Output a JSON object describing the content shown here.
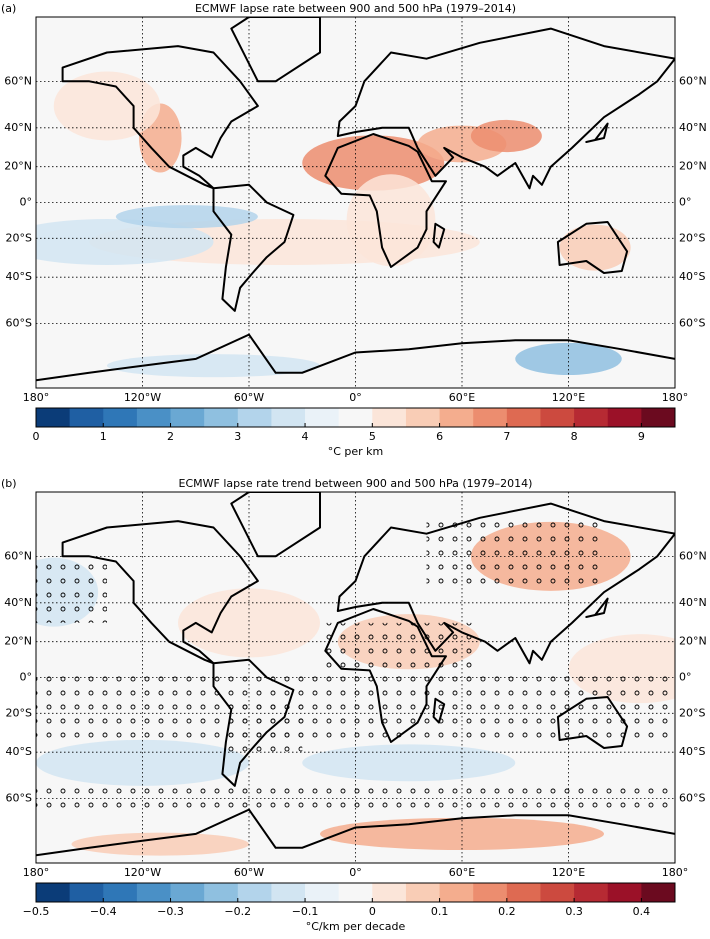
{
  "panels": [
    {
      "label": "(a)",
      "title": "ECMWF lapse rate between 900 and 500 hPa (1979–2014)",
      "lonlim": [
        -180,
        180
      ],
      "latlim": [
        -80,
        80
      ],
      "lon_ticks": [
        {
          "value": -180,
          "label": "180°"
        },
        {
          "value": -120,
          "label": "120°W"
        },
        {
          "value": -60,
          "label": "60°W"
        },
        {
          "value": 0,
          "label": "0°"
        },
        {
          "value": 60,
          "label": "60°E"
        },
        {
          "value": 120,
          "label": "120°E"
        },
        {
          "value": 180,
          "label": "180°"
        }
      ],
      "lat_ticks": [
        {
          "value": 60,
          "label": "60°N"
        },
        {
          "value": 40,
          "label": "40°N"
        },
        {
          "value": 20,
          "label": "20°N"
        },
        {
          "value": 0,
          "label": "0°"
        },
        {
          "value": -20,
          "label": "20°S"
        },
        {
          "value": -40,
          "label": "40°S"
        },
        {
          "value": -60,
          "label": "60°S"
        }
      ],
      "colorbar": {
        "lim": [
          0,
          9.5
        ],
        "ticks": [
          0,
          1,
          2,
          3,
          4,
          5,
          6,
          7,
          8,
          9
        ],
        "label": "°C per km",
        "colors": [
          "#0b3c78",
          "#1f5fa3",
          "#2f77b7",
          "#4a90c6",
          "#6aa8d3",
          "#8fc0e0",
          "#b3d4eb",
          "#d2e5f2",
          "#eaf2f8",
          "#f7f7f7",
          "#fbe5d9",
          "#f9cdb6",
          "#f4ad8e",
          "#ec8d6f",
          "#de6a52",
          "#cc4a3f",
          "#b62a33",
          "#9b1128",
          "#6b0a1f"
        ]
      }
    },
    {
      "label": "(b)",
      "title": "ECMWF lapse rate trend between 900 and 500 hPa (1979–2014)",
      "lonlim": [
        -180,
        180
      ],
      "latlim": [
        -80,
        80
      ],
      "lon_ticks": [
        {
          "value": -180,
          "label": "180°"
        },
        {
          "value": -120,
          "label": "120°W"
        },
        {
          "value": -60,
          "label": "60°W"
        },
        {
          "value": 0,
          "label": "0°"
        },
        {
          "value": 60,
          "label": "60°E"
        },
        {
          "value": 120,
          "label": "120°E"
        },
        {
          "value": 180,
          "label": "180°"
        }
      ],
      "lat_ticks": [
        {
          "value": 60,
          "label": "60°N"
        },
        {
          "value": 40,
          "label": "40°N"
        },
        {
          "value": 20,
          "label": "20°N"
        },
        {
          "value": 0,
          "label": "0°"
        },
        {
          "value": -20,
          "label": "20°S"
        },
        {
          "value": -40,
          "label": "40°S"
        },
        {
          "value": -60,
          "label": "60°S"
        }
      ],
      "colorbar": {
        "lim": [
          -0.5,
          0.45
        ],
        "ticks": [
          {
            "value": -0.5,
            "label": "−0.5"
          },
          {
            "value": -0.4,
            "label": "−0.4"
          },
          {
            "value": -0.3,
            "label": "−0.3"
          },
          {
            "value": -0.2,
            "label": "−0.2"
          },
          {
            "value": -0.1,
            "label": "−0.1"
          },
          0.0,
          0.1,
          0.2,
          0.3,
          0.4
        ],
        "label": "°C/km per decade",
        "colors": [
          "#0b3c78",
          "#1f5fa3",
          "#2f77b7",
          "#4a90c6",
          "#6aa8d3",
          "#8fc0e0",
          "#b3d4eb",
          "#d2e5f2",
          "#eaf2f8",
          "#f7f7f7",
          "#fbe5d9",
          "#f9cdb6",
          "#f4ad8e",
          "#ec8d6f",
          "#de6a52",
          "#cc4a3f",
          "#b62a33",
          "#9b1128",
          "#6b0a1f"
        ]
      }
    }
  ]
}
